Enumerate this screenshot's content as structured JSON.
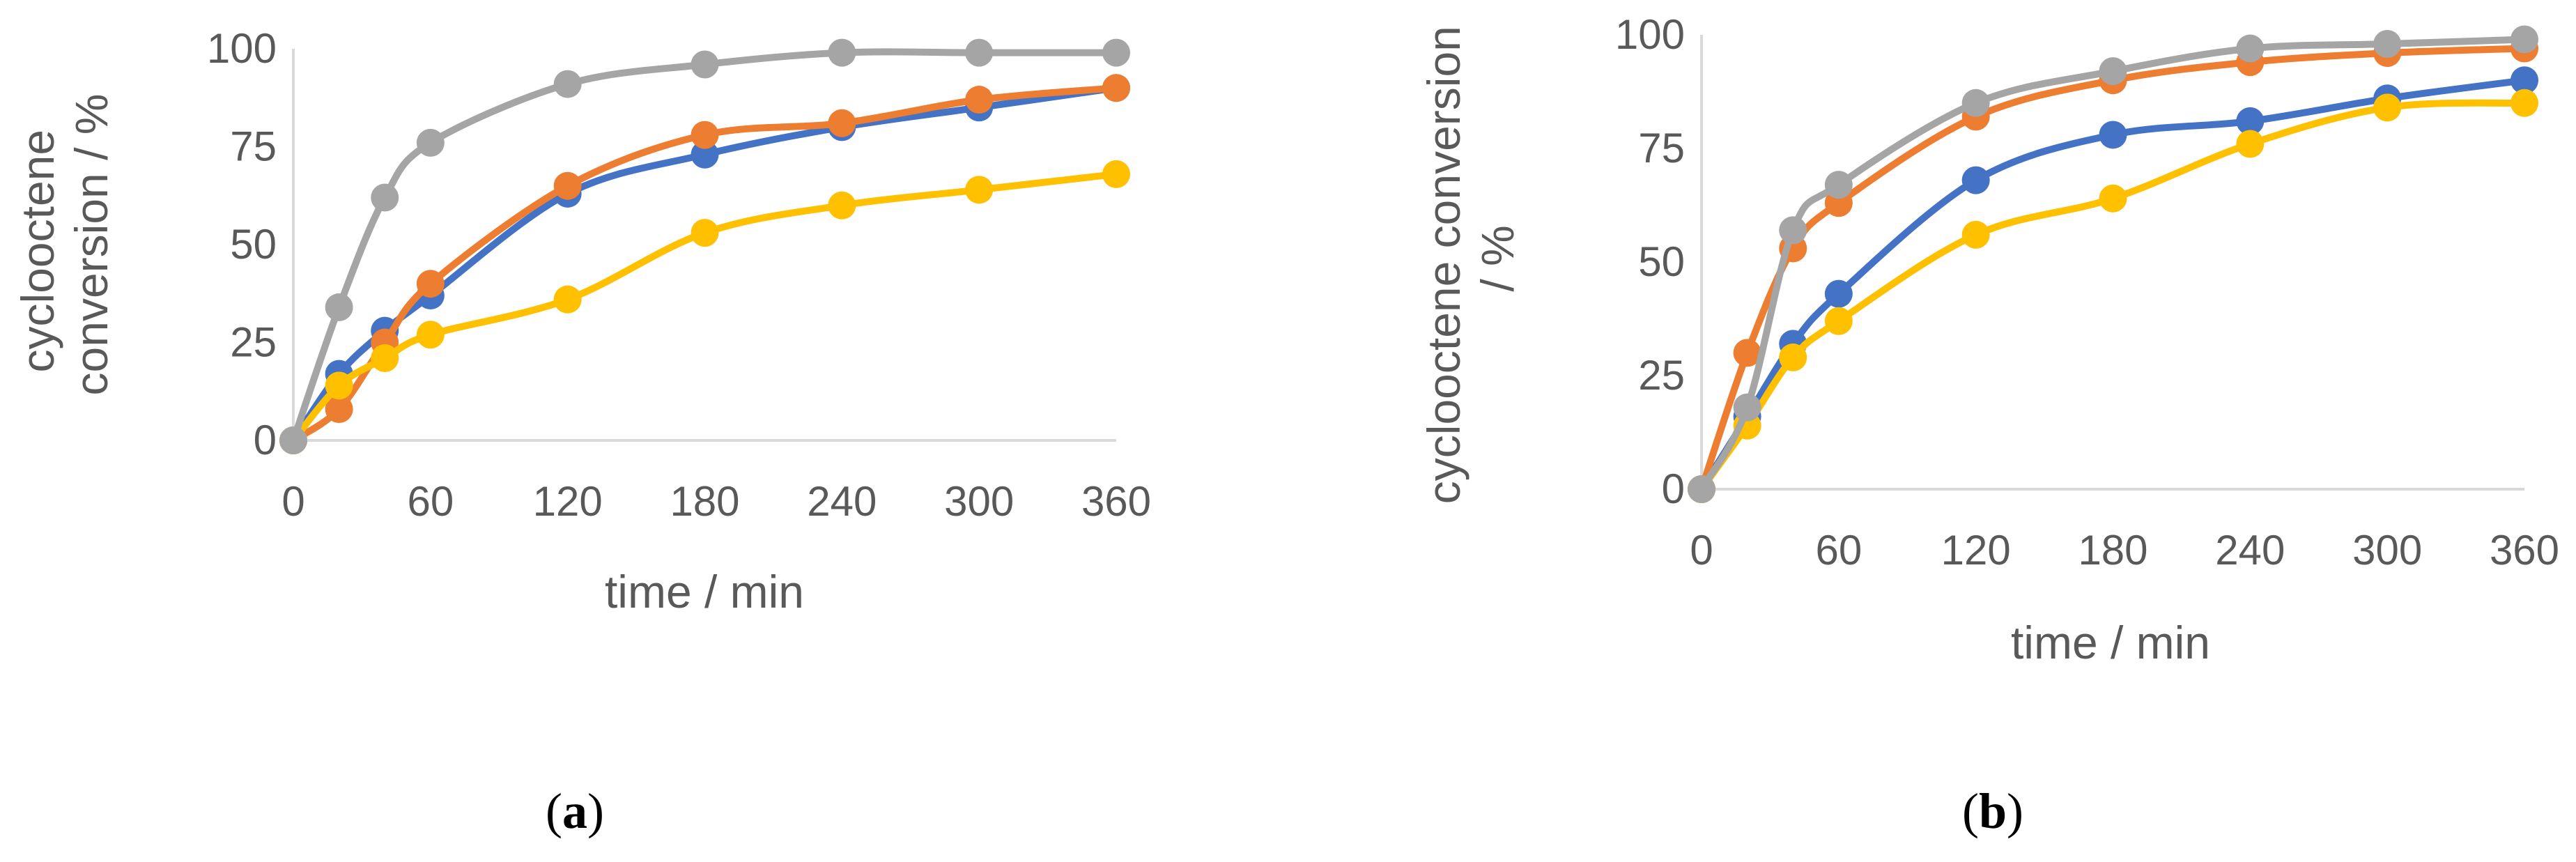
{
  "colors": {
    "axis": "#d9d9d9",
    "text": "#595959",
    "series_blue": "#4472c4",
    "series_orange": "#ed7d31",
    "series_gray": "#a5a5a5",
    "series_yellow": "#ffc000"
  },
  "chart_data": [
    {
      "type": "line",
      "panel_label": "a",
      "xlabel": "time / min",
      "ylabel_lines": [
        "cyclooctene",
        "conversion / %"
      ],
      "xlim": [
        0,
        360
      ],
      "ylim": [
        0,
        100
      ],
      "xticks": [
        0,
        60,
        120,
        180,
        240,
        300,
        360
      ],
      "yticks": [
        0,
        25,
        50,
        75,
        100
      ],
      "grid": false,
      "smooth": true,
      "marker": "circle",
      "x": [
        0,
        20,
        40,
        60,
        120,
        180,
        240,
        300,
        360
      ],
      "series": [
        {
          "color": "#4472c4",
          "values": [
            0,
            17,
            28,
            37,
            63,
            73,
            80,
            85,
            90
          ]
        },
        {
          "color": "#ed7d31",
          "values": [
            0,
            8,
            25,
            40,
            65,
            78,
            81,
            87,
            90
          ]
        },
        {
          "color": "#ffc000",
          "values": [
            0,
            14,
            21,
            27,
            36,
            53,
            60,
            64,
            68
          ]
        },
        {
          "color": "#a5a5a5",
          "values": [
            0,
            34,
            62,
            76,
            91,
            96,
            99,
            99,
            99
          ]
        }
      ]
    },
    {
      "type": "line",
      "panel_label": "b",
      "xlabel": "time / min",
      "ylabel_lines": [
        "cyclooctene conversion",
        "/ %"
      ],
      "xlim": [
        0,
        360
      ],
      "ylim": [
        0,
        100
      ],
      "xticks": [
        0,
        60,
        120,
        180,
        240,
        300,
        360
      ],
      "yticks": [
        0,
        25,
        50,
        75,
        100
      ],
      "grid": false,
      "smooth": true,
      "marker": "circle",
      "x": [
        0,
        20,
        40,
        60,
        120,
        180,
        240,
        300,
        360
      ],
      "series": [
        {
          "color": "#4472c4",
          "values": [
            0,
            16,
            32,
            43,
            68,
            78,
            81,
            86,
            90
          ]
        },
        {
          "color": "#ffc000",
          "values": [
            0,
            14,
            29,
            37,
            56,
            64,
            76,
            84,
            85
          ]
        },
        {
          "color": "#ed7d31",
          "values": [
            0,
            30,
            53,
            63,
            82,
            90,
            94,
            96,
            97
          ]
        },
        {
          "color": "#a5a5a5",
          "values": [
            0,
            18,
            57,
            67,
            85,
            92,
            97,
            98,
            99
          ]
        }
      ]
    }
  ]
}
